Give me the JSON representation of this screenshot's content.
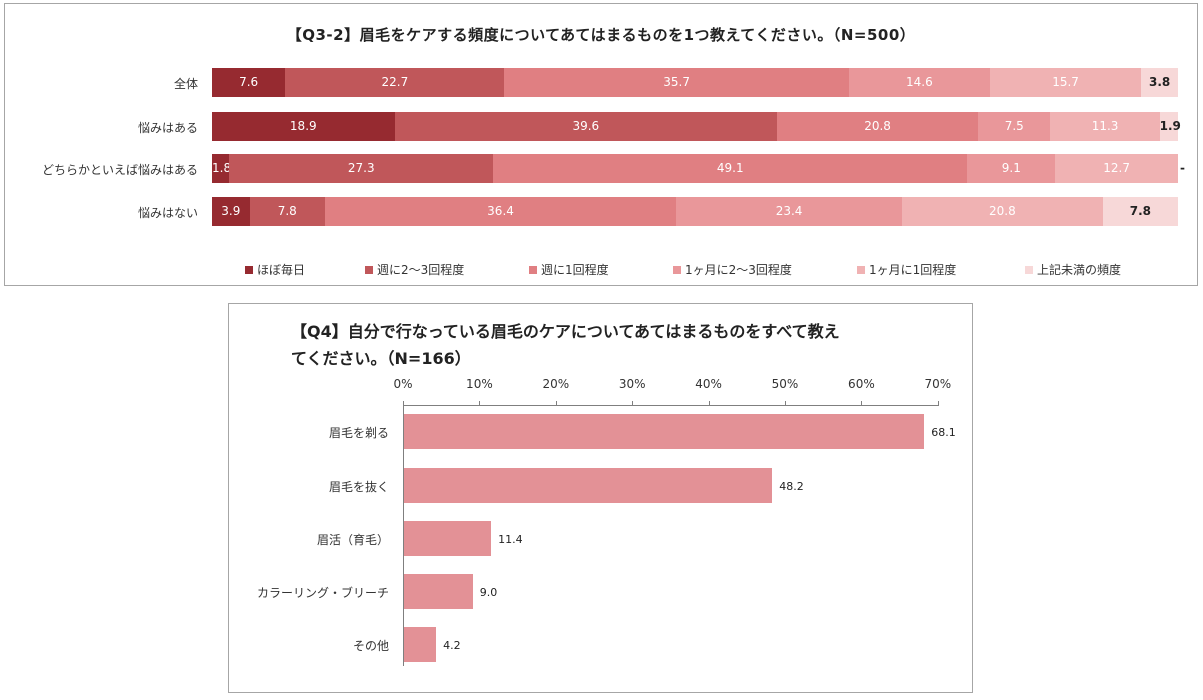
{
  "chart_data": [
    {
      "type": "bar",
      "orientation": "horizontal",
      "stacked": true,
      "title": "【Q3-2】眉毛をケアする頻度についてあてはまるものを1つ教えてください。（N=500）",
      "categories": [
        "全体",
        "悩みはある",
        "どちらかといえば悩みはある",
        "悩みはない"
      ],
      "series": [
        {
          "name": "ほぼ毎日",
          "color": "#962a30",
          "values": [
            7.6,
            18.9,
            1.8,
            3.9
          ],
          "labels": [
            "7.6",
            "18.9",
            "1.8",
            "3.9"
          ]
        },
        {
          "name": "週に2～3回程度",
          "color": "#c0575a",
          "values": [
            22.7,
            39.6,
            27.3,
            7.8
          ],
          "labels": [
            "22.7",
            "39.6",
            "27.3",
            "7.8"
          ]
        },
        {
          "name": "週に1回程度",
          "color": "#e07f82",
          "values": [
            35.7,
            20.8,
            49.1,
            36.4
          ],
          "labels": [
            "35.7",
            "20.8",
            "49.1",
            "36.4"
          ]
        },
        {
          "name": "1ヶ月に2～3回程度",
          "color": "#e9979a",
          "values": [
            14.6,
            7.5,
            9.1,
            23.4
          ],
          "labels": [
            "14.6",
            "7.5",
            "9.1",
            "23.4"
          ]
        },
        {
          "name": "1ヶ月に1回程度",
          "color": "#f0b2b3",
          "values": [
            15.7,
            11.3,
            12.7,
            20.8
          ],
          "labels": [
            "15.7",
            "11.3",
            "12.7",
            "20.8"
          ]
        },
        {
          "name": "上記未満の頻度",
          "color": "#f7d8d8",
          "values": [
            3.8,
            1.9,
            0,
            7.8
          ],
          "labels": [
            "3.8",
            "1.9",
            "-",
            "7.8"
          ]
        }
      ],
      "xlim": [
        0,
        100
      ],
      "legend": "bottom"
    },
    {
      "type": "bar",
      "orientation": "horizontal",
      "title": "【Q4】自分で行なっている眉毛のケアについてあてはまるものをすべて教えてください。（N=166）",
      "title_lines": [
        "【Q4】自分で行なっている眉毛のケアについてあてはまるものをすべて教え",
        "てください。（N=166）"
      ],
      "categories": [
        "眉毛を剃る",
        "眉毛を抜く",
        "眉活（育毛）",
        "カラーリング・ブリーチ",
        "その他"
      ],
      "values": [
        68.1,
        48.2,
        11.4,
        9.0,
        4.2
      ],
      "labels": [
        "68.1",
        "48.2",
        "11.4",
        "9.0",
        "4.2"
      ],
      "color": "#e39196",
      "xlim": [
        0,
        70
      ],
      "xticks": [
        0,
        10,
        20,
        30,
        40,
        50,
        60,
        70
      ],
      "xtick_labels": [
        "0%",
        "10%",
        "20%",
        "30%",
        "40%",
        "50%",
        "60%",
        "70%"
      ],
      "axis_position": "top"
    }
  ]
}
